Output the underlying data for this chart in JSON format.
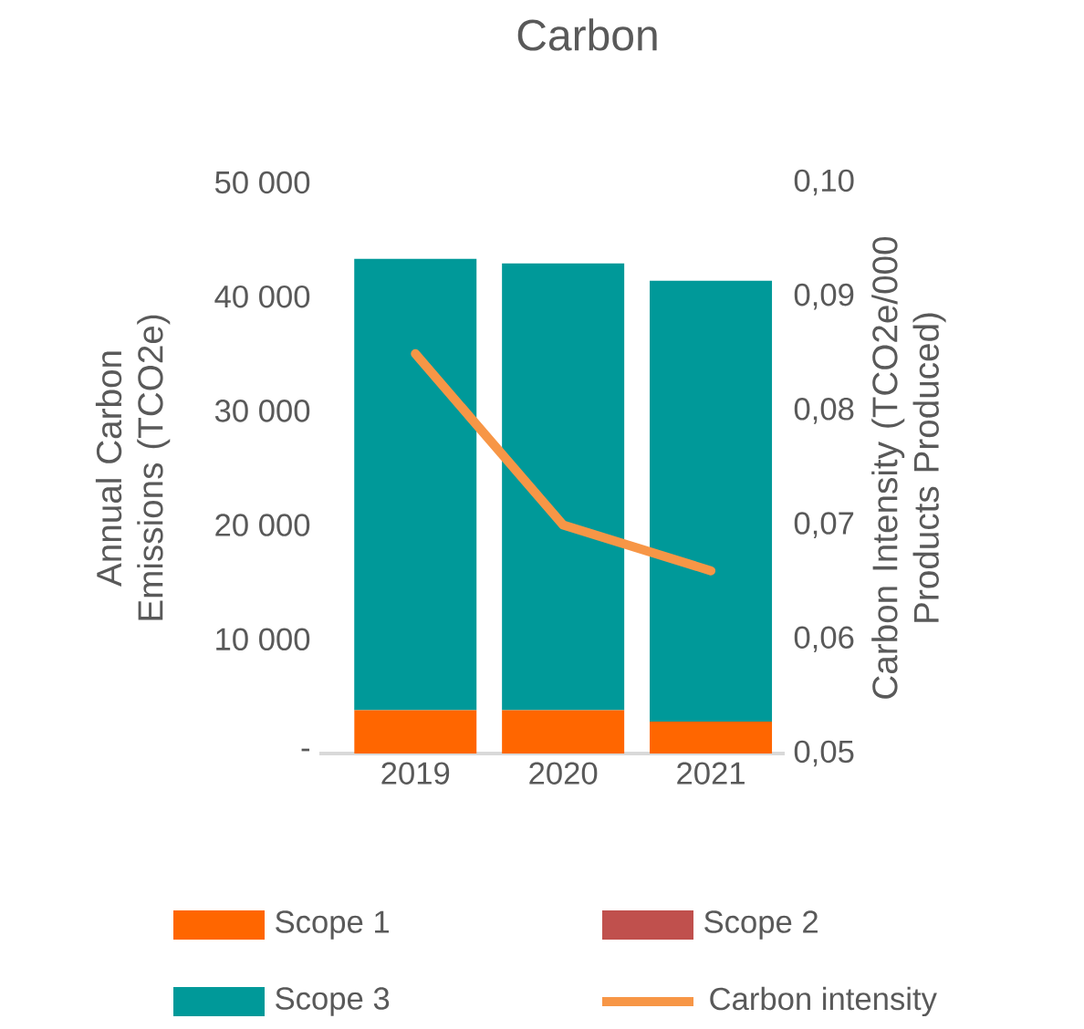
{
  "chart_data": {
    "type": "bar",
    "title": "Carbon",
    "stacked": true,
    "categories": [
      "2019",
      "2020",
      "2021"
    ],
    "ylabel": "Annual Carbon Emissions (TCO2e)",
    "y2label": "Carbon Intensity (TCO2e/000 Products Produced)",
    "ylim": [
      0,
      50000
    ],
    "yticks": [
      {
        "value": 0,
        "label": "-"
      },
      {
        "value": 10000,
        "label": "10 000"
      },
      {
        "value": 20000,
        "label": "20 000"
      },
      {
        "value": 30000,
        "label": "30 000"
      },
      {
        "value": 40000,
        "label": "40 000"
      },
      {
        "value": 50000,
        "label": "50 000"
      }
    ],
    "y2lim": [
      0.05,
      0.1
    ],
    "y2ticks": [
      {
        "value": 0.05,
        "label": "0,05"
      },
      {
        "value": 0.06,
        "label": "0,06"
      },
      {
        "value": 0.07,
        "label": "0,07"
      },
      {
        "value": 0.08,
        "label": "0,08"
      },
      {
        "value": 0.09,
        "label": "0,09"
      },
      {
        "value": 0.1,
        "label": "0,10"
      }
    ],
    "legend": "bottom",
    "series": [
      {
        "name": "Scope 1",
        "color": "#ff6600",
        "values": [
          3800,
          3800,
          2800
        ]
      },
      {
        "name": "Scope 2",
        "color": "#c0504d",
        "values": [
          0,
          0,
          0
        ]
      },
      {
        "name": "Scope 3",
        "color": "#009999",
        "values": [
          39500,
          39100,
          38600
        ]
      },
      {
        "name": "Carbon intensity",
        "type": "line",
        "axis": "y2",
        "color": "#f79646",
        "values": [
          0.085,
          0.07,
          0.066
        ]
      }
    ]
  }
}
